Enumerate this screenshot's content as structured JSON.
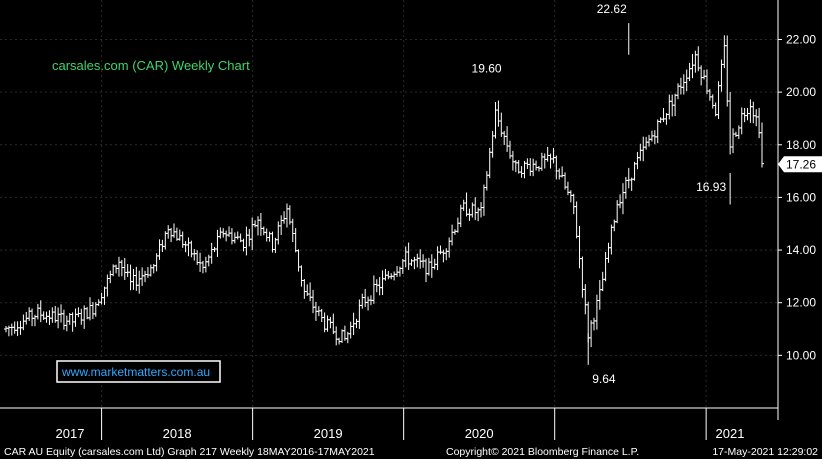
{
  "chart_data": {
    "type": "ohlc",
    "title": "carsales.com (CAR) Weekly Chart",
    "watermark": "www.marketmatters.com.au",
    "ylim": [
      8.0,
      23.5
    ],
    "y_ticks": [
      "10.00",
      "12.00",
      "14.00",
      "16.00",
      "18.00",
      "20.00",
      "22.00"
    ],
    "y_tick_values": [
      10,
      12,
      14,
      16,
      18,
      20,
      22
    ],
    "x_labels": [
      "2017",
      "2018",
      "2019",
      "2020",
      "2021"
    ],
    "last_price": "17.26",
    "last_value": 17.26,
    "annotations": [
      {
        "text": "22.62",
        "value": 22.62,
        "date": "2020-06-29"
      },
      {
        "text": "19.60",
        "value": 19.6,
        "date": "2019-08-12"
      },
      {
        "text": "16.93",
        "value": 16.93,
        "date": "2021-03-01"
      },
      {
        "text": "9.64",
        "value": 9.64,
        "date": "2020-03-23"
      }
    ],
    "close_keypoints": [
      [
        "2016-05-16",
        11.0
      ],
      [
        "2016-08-01",
        11.6
      ],
      [
        "2016-10-24",
        11.3
      ],
      [
        "2016-12-12",
        11.8
      ],
      [
        "2017-02-13",
        13.6
      ],
      [
        "2017-03-13",
        12.7
      ],
      [
        "2017-05-08",
        13.4
      ],
      [
        "2017-06-12",
        14.9
      ],
      [
        "2017-07-24",
        14.2
      ],
      [
        "2017-09-04",
        13.3
      ],
      [
        "2017-10-23",
        14.7
      ],
      [
        "2017-12-11",
        14.3
      ],
      [
        "2018-01-15",
        15.2
      ],
      [
        "2018-02-19",
        14.2
      ],
      [
        "2018-03-26",
        15.6
      ],
      [
        "2018-05-07",
        12.4
      ],
      [
        "2018-06-25",
        11.2
      ],
      [
        "2018-08-13",
        10.6
      ],
      [
        "2018-09-24",
        12.0
      ],
      [
        "2018-11-19",
        12.9
      ],
      [
        "2019-01-07",
        13.7
      ],
      [
        "2019-03-04",
        13.3
      ],
      [
        "2019-04-15",
        14.2
      ],
      [
        "2019-05-27",
        15.6
      ],
      [
        "2019-07-08",
        15.4
      ],
      [
        "2019-08-12",
        19.2
      ],
      [
        "2019-09-30",
        17.1
      ],
      [
        "2019-12-30",
        17.4
      ],
      [
        "2020-02-17",
        15.6
      ],
      [
        "2020-03-23",
        10.8
      ],
      [
        "2020-04-20",
        12.3
      ],
      [
        "2020-06-01",
        15.8
      ],
      [
        "2020-07-27",
        17.6
      ],
      [
        "2020-09-28",
        19.3
      ],
      [
        "2020-11-09",
        20.5
      ],
      [
        "2020-12-07",
        21.4
      ],
      [
        "2021-01-25",
        19.3
      ],
      [
        "2021-02-15",
        21.6
      ],
      [
        "2021-03-01",
        18.0
      ],
      [
        "2021-03-29",
        19.1
      ],
      [
        "2021-04-19",
        19.6
      ],
      [
        "2021-05-10",
        18.7
      ],
      [
        "2021-05-17",
        17.26
      ]
    ]
  },
  "footer": {
    "left": "CAR AU Equity (carsales.com Ltd) Graph 217  Weekly 18MAY2016-17MAY2021",
    "center": "Copyright© 2021 Bloomberg Finance L.P.",
    "right": "17-May-2021 12:29:02"
  }
}
